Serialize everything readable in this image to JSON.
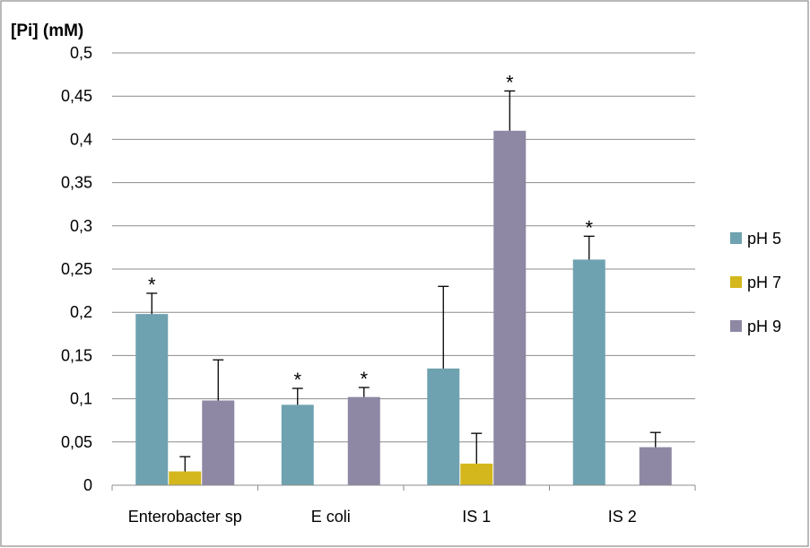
{
  "chart_data": {
    "type": "bar",
    "ylabel": "[Pi] (mM)",
    "ylim": [
      0,
      0.5
    ],
    "yticks": [
      "0",
      "0,05",
      "0,1",
      "0,15",
      "0,2",
      "0,25",
      "0,3",
      "0,35",
      "0,4",
      "0,45",
      "0,5"
    ],
    "categories": [
      "Enterobacter sp",
      "E coli",
      "IS 1",
      "IS 2"
    ],
    "series": [
      {
        "name": "pH 5",
        "color": "#6fa2b0",
        "values": [
          0.198,
          0.093,
          0.135,
          0.261
        ],
        "errors": [
          0.024,
          0.019,
          0.095,
          0.027
        ],
        "significant": [
          true,
          true,
          false,
          true
        ]
      },
      {
        "name": "pH 7",
        "color": "#d4b71c",
        "values": [
          0.016,
          0.0,
          0.025,
          0.0
        ],
        "errors": [
          0.017,
          0.0,
          0.035,
          0.0
        ],
        "significant": [
          false,
          false,
          false,
          false
        ]
      },
      {
        "name": "pH 9",
        "color": "#8e88a4",
        "values": [
          0.098,
          0.102,
          0.41,
          0.044
        ],
        "errors": [
          0.047,
          0.011,
          0.046,
          0.017
        ],
        "significant": [
          false,
          true,
          true,
          false
        ]
      }
    ],
    "significance_marker": "*",
    "grid": true,
    "legend_position": "right"
  }
}
